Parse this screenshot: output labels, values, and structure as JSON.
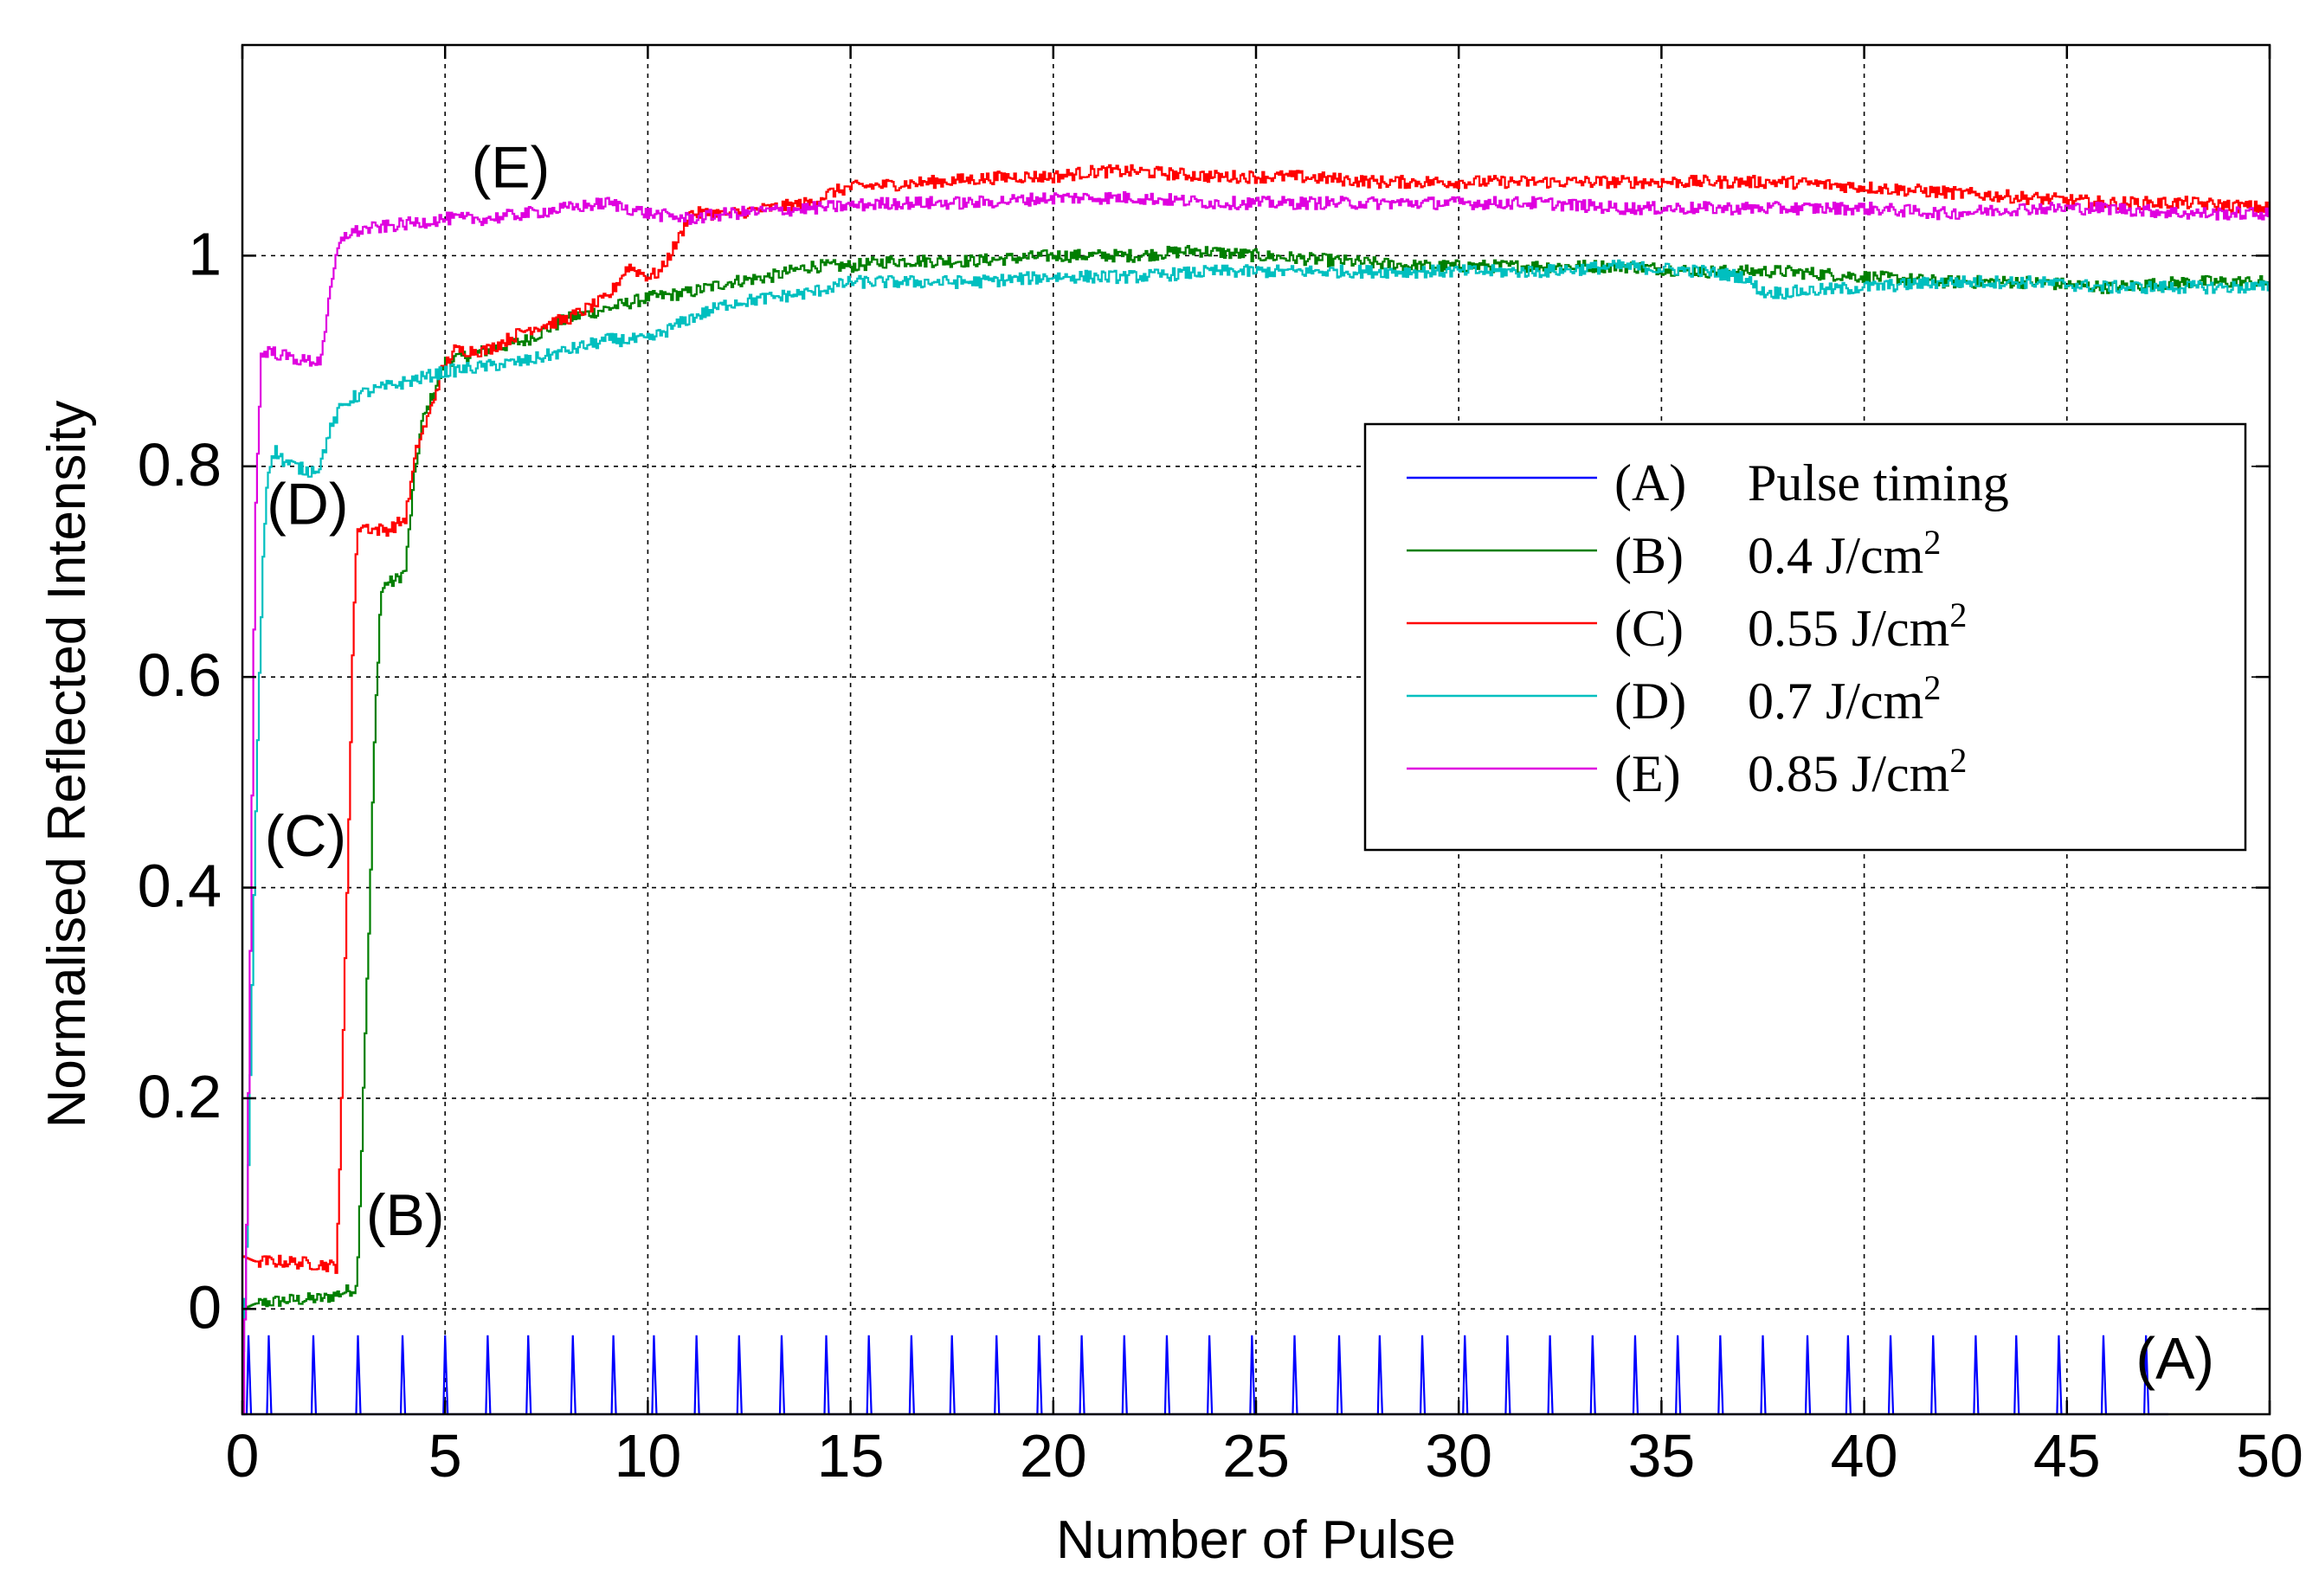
{
  "chart_data": {
    "type": "line",
    "title": "",
    "xlabel": "Number of Pulse",
    "ylabel": "Normalised Reflected Intensity",
    "xlim": [
      0,
      50
    ],
    "ylim": [
      -0.1,
      1.2
    ],
    "xticks": [
      0,
      5,
      10,
      15,
      20,
      25,
      30,
      35,
      40,
      45,
      50
    ],
    "xtick_labels": [
      "0",
      "5",
      "10",
      "15",
      "20",
      "25",
      "30",
      "35",
      "40",
      "45",
      "50"
    ],
    "yticks": [
      0,
      0.2,
      0.4,
      0.6,
      0.8,
      1
    ],
    "ytick_labels": [
      "0",
      "0.2",
      "0.4",
      "0.6",
      "0.8",
      "1"
    ],
    "grid": true,
    "legend_position": "upper-right",
    "series": [
      {
        "id": "A",
        "tag": "(A)",
        "legend_text": "Pulse timing",
        "legend_unit": "",
        "color": "#0000ff",
        "style": "pulses",
        "baseline": -0.1,
        "peak": -0.025,
        "pulse_x": [
          0.15,
          0.65,
          1.75,
          2.85,
          3.95,
          5.0,
          6.05,
          7.05,
          8.15,
          9.15,
          10.15,
          11.2,
          12.25,
          13.3,
          14.4,
          15.45,
          16.5,
          17.5,
          18.6,
          19.65,
          20.7,
          21.75,
          22.8,
          23.85,
          24.9,
          25.95,
          27.05,
          28.05,
          29.1,
          30.15,
          31.2,
          32.25,
          33.3,
          34.35,
          35.4,
          36.45,
          37.5,
          38.6,
          39.6,
          40.65,
          41.7,
          42.75,
          43.75,
          44.8,
          45.9,
          46.95
        ],
        "trace_end_x": 47.5,
        "label_text": "(A)",
        "label_at": [
          46.7,
          -0.066
        ]
      },
      {
        "id": "B",
        "tag": "(B)",
        "legend_text": "0.4 J/cm",
        "legend_unit": "2",
        "color": "#007f00",
        "style": "line",
        "x": [
          0,
          0.3,
          1,
          2,
          2.8,
          2.9,
          3.0,
          3.1,
          3.25,
          3.4,
          3.55,
          3.7,
          4.0,
          4.2,
          4.4,
          4.6,
          4.8,
          5.0,
          6,
          7,
          8,
          9,
          10,
          11,
          12,
          13,
          14,
          15,
          16,
          18,
          20,
          22,
          23.5,
          25,
          27,
          29,
          30,
          32,
          34,
          36,
          38,
          40,
          42,
          44,
          46,
          48,
          50
        ],
        "y": [
          0.0,
          0.005,
          0.008,
          0.01,
          0.02,
          0.12,
          0.25,
          0.35,
          0.55,
          0.68,
          0.69,
          0.69,
          0.7,
          0.78,
          0.84,
          0.86,
          0.88,
          0.9,
          0.91,
          0.92,
          0.94,
          0.95,
          0.96,
          0.965,
          0.975,
          0.98,
          0.99,
          0.99,
          0.995,
          0.995,
          1.0,
          1.0,
          1.005,
          1.0,
          0.995,
          0.99,
          0.99,
          0.99,
          0.99,
          0.985,
          0.985,
          0.98,
          0.975,
          0.975,
          0.97,
          0.975,
          0.975
        ],
        "label_text": "(B)",
        "label_at": [
          3.05,
          0.07
        ]
      },
      {
        "id": "C",
        "tag": "(C)",
        "legend_text": "0.55 J/cm",
        "legend_unit": "2",
        "color": "#ff0000",
        "style": "line",
        "x": [
          0,
          0.3,
          1,
          2,
          2.3,
          2.4,
          2.5,
          2.6,
          2.7,
          2.8,
          2.9,
          3.2,
          3.6,
          4.0,
          4.3,
          4.6,
          4.9,
          5.2,
          6,
          7,
          8,
          8.5,
          9,
          9.5,
          10,
          10.3,
          10.8,
          11,
          12,
          13,
          14,
          14.5,
          15,
          17,
          19,
          20,
          21,
          22,
          24,
          26,
          28,
          30,
          32,
          34,
          36,
          38,
          40,
          42,
          44,
          46,
          48,
          50
        ],
        "y": [
          0.05,
          0.045,
          0.045,
          0.042,
          0.04,
          0.15,
          0.3,
          0.45,
          0.62,
          0.73,
          0.745,
          0.74,
          0.74,
          0.75,
          0.82,
          0.85,
          0.89,
          0.91,
          0.91,
          0.93,
          0.94,
          0.95,
          0.96,
          0.99,
          0.98,
          0.985,
          1.02,
          1.04,
          1.04,
          1.045,
          1.05,
          1.06,
          1.065,
          1.07,
          1.075,
          1.075,
          1.08,
          1.08,
          1.075,
          1.075,
          1.07,
          1.07,
          1.07,
          1.07,
          1.07,
          1.07,
          1.065,
          1.06,
          1.055,
          1.05,
          1.05,
          1.045
        ],
        "label_text": "(C)",
        "label_at": [
          0.55,
          0.43
        ]
      },
      {
        "id": "D",
        "tag": "(D)",
        "legend_text": "0.7 J/cm",
        "legend_unit": "2",
        "color": "#00bfbf",
        "style": "line",
        "x": [
          0,
          0.1,
          0.2,
          0.3,
          0.4,
          0.5,
          0.6,
          0.7,
          0.8,
          1.0,
          1.3,
          1.6,
          1.9,
          2.1,
          2.4,
          2.7,
          3.0,
          3.5,
          4.0,
          4.5,
          5.0,
          6,
          7,
          8,
          9,
          10,
          10.5,
          11,
          12,
          13,
          14,
          15,
          16,
          18,
          20,
          22,
          24,
          26,
          28,
          30,
          32,
          34,
          36,
          37,
          37.5,
          38,
          40,
          42,
          44,
          46,
          48,
          50
        ],
        "y": [
          -0.04,
          0.07,
          0.26,
          0.45,
          0.6,
          0.72,
          0.79,
          0.81,
          0.815,
          0.805,
          0.8,
          0.795,
          0.8,
          0.83,
          0.855,
          0.865,
          0.87,
          0.875,
          0.88,
          0.885,
          0.89,
          0.895,
          0.9,
          0.91,
          0.92,
          0.92,
          0.93,
          0.94,
          0.955,
          0.96,
          0.965,
          0.975,
          0.975,
          0.975,
          0.98,
          0.98,
          0.985,
          0.985,
          0.985,
          0.985,
          0.985,
          0.99,
          0.985,
          0.98,
          0.965,
          0.965,
          0.97,
          0.975,
          0.975,
          0.97,
          0.97,
          0.97
        ],
        "label_text": "(D)",
        "label_at": [
          0.6,
          0.745
        ]
      },
      {
        "id": "E",
        "tag": "(E)",
        "legend_text": "0.85 J/cm",
        "legend_unit": "2",
        "color": "#df00df",
        "style": "line",
        "x": [
          0,
          0.1,
          0.2,
          0.3,
          0.45,
          0.6,
          1.0,
          1.5,
          1.9,
          2.1,
          2.3,
          2.5,
          3,
          4,
          5,
          6,
          7,
          8,
          9,
          10,
          11,
          12,
          14,
          16,
          18,
          20,
          22,
          24,
          26,
          28,
          30,
          32,
          34,
          36,
          38,
          40,
          42,
          44,
          46,
          48,
          50
        ],
        "y": [
          -0.1,
          0.1,
          0.4,
          0.75,
          0.905,
          0.91,
          0.905,
          0.9,
          0.9,
          0.95,
          1.0,
          1.02,
          1.025,
          1.03,
          1.035,
          1.035,
          1.04,
          1.045,
          1.05,
          1.04,
          1.035,
          1.04,
          1.045,
          1.05,
          1.05,
          1.055,
          1.055,
          1.05,
          1.05,
          1.05,
          1.05,
          1.05,
          1.045,
          1.045,
          1.045,
          1.045,
          1.04,
          1.045,
          1.045,
          1.04,
          1.04
        ],
        "label_text": "(E)",
        "label_at": [
          5.65,
          1.065
        ]
      }
    ]
  }
}
